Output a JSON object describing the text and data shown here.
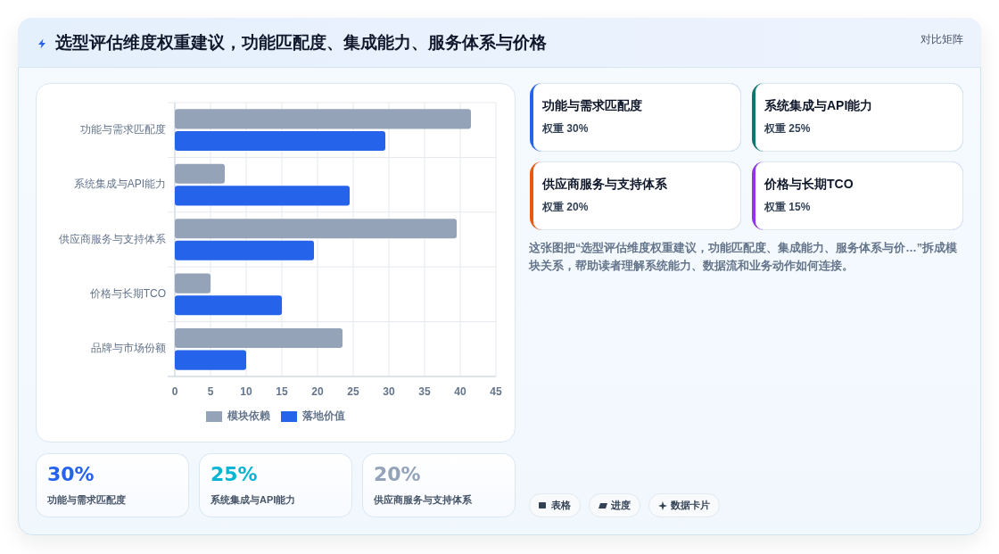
{
  "chart_data": [
    {
      "type": "other",
      "title": "选型评估维度权重建议，功能匹配度、集成能力、服务体系与价格",
      "annotations": [
        "对比矩阵"
      ]
    },
    {
      "type": "bar",
      "orientation": "horizontal",
      "categories": [
        "功能与需求匹配度",
        "系统集成与API能力",
        "供应商服务与支持体系",
        "价格与长期TCO",
        "品牌与市场份额"
      ],
      "series": [
        {
          "name": "模块依赖",
          "color": "#94a3b8",
          "values": [
            41.5,
            7,
            39.5,
            5,
            23.5
          ]
        },
        {
          "name": "落地价值",
          "color": "#2563eb",
          "values": [
            29.5,
            24.5,
            19.5,
            15,
            10
          ]
        }
      ],
      "xlim": [
        0,
        45
      ],
      "xticks": [
        0,
        5,
        10,
        15,
        20,
        25,
        30,
        35,
        40,
        45
      ],
      "grid": true,
      "legend": "bottom"
    },
    {
      "type": "other",
      "categories": [
        "功能与需求匹配度",
        "系统集成与API能力",
        "供应商服务与支持体系",
        "价格与长期TCO"
      ],
      "value_labels": [
        "权重 30%",
        "权重 25%",
        "权重 20%",
        "权重 15%"
      ],
      "colors": [
        "#2563eb",
        "#0f766e",
        "#ea580c",
        "#9333ea"
      ],
      "annotations": [
        "这张图把“选型评估维度权重建议，功能匹配度、集成能力、服务体系与价…”拆成模块关系，帮助读者理解系统能力、数据流和业务动作如何连接。",
        "表格",
        "进度",
        "数据卡片"
      ]
    },
    {
      "type": "other",
      "categories": [
        "功能与需求匹配度",
        "系统集成与API能力",
        "供应商服务与支持体系"
      ],
      "value_labels": [
        "30%",
        "25%",
        "20%"
      ],
      "colors": [
        "#2563eb",
        "#06b6d4",
        "#94a3b8"
      ]
    }
  ]
}
